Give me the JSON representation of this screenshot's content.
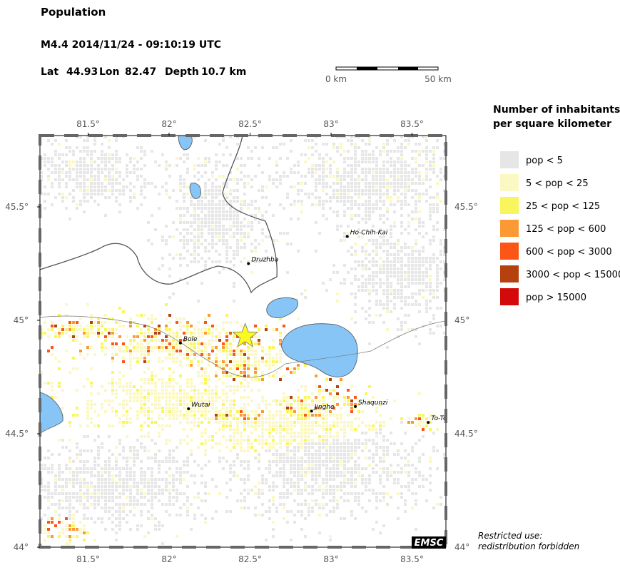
{
  "header": {
    "title": "Population",
    "event": "M4.4  2014/11/24 - 09:10:19 UTC",
    "lat_label": "Lat",
    "lat": 44.93,
    "lon_label": "Lon",
    "lon": 82.47,
    "depth_label": "Depth",
    "depth": "10.7 km"
  },
  "scale_bar": {
    "start": "0 km",
    "end": "50 km"
  },
  "map": {
    "lon_ticks": [
      {
        "value": 81.5,
        "label": "81.5°"
      },
      {
        "value": 82,
        "label": "82°"
      },
      {
        "value": 82.5,
        "label": "82.5°"
      },
      {
        "value": 83,
        "label": "83°"
      },
      {
        "value": 83.5,
        "label": "83.5°"
      }
    ],
    "lat_ticks": [
      {
        "value": 45.5,
        "label": "45.5°"
      },
      {
        "value": 45,
        "label": "45°"
      },
      {
        "value": 44.5,
        "label": "44.5°"
      },
      {
        "value": 44,
        "label": "44°"
      }
    ],
    "cities": [
      "Druzhba",
      "Ho-Chih-Kai",
      "Bole",
      "Wutai",
      "Jinghe",
      "Shaqunzi",
      "To-To"
    ],
    "badge": "EMSC"
  },
  "legend": {
    "title": [
      "Number of inhabitants",
      "per square kilometer"
    ],
    "items": [
      {
        "label": "pop < 5",
        "color": "#e6e6e6"
      },
      {
        "label": "5 < pop < 25",
        "color": "#fbf8c4"
      },
      {
        "label": "25 < pop < 125",
        "color": "#f8f65c"
      },
      {
        "label": "125 < pop < 600",
        "color": "#fb9a35"
      },
      {
        "label": "600 < pop < 3000",
        "color": "#fd5515"
      },
      {
        "label": "3000 < pop < 15000",
        "color": "#b5410f"
      },
      {
        "label": "pop > 15000",
        "color": "#d40a0a"
      }
    ]
  },
  "note": [
    "Restricted use:",
    "redistribution forbidden"
  ]
}
